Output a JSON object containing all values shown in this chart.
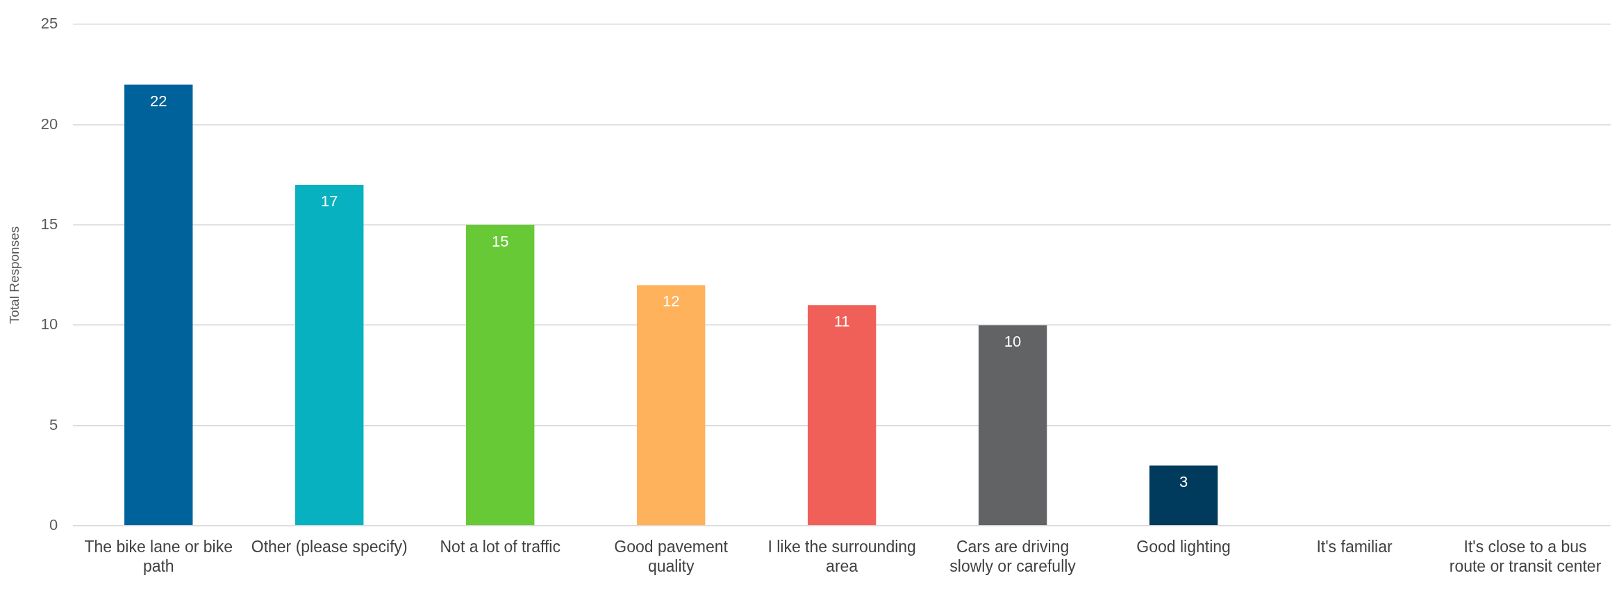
{
  "chart_data": {
    "type": "bar",
    "ylabel": "Total Responses",
    "categories": [
      "The bike lane or bike path",
      "Other (please specify)",
      "Not a lot of traffic",
      "Good pavement quality",
      "I like the surrounding area",
      "Cars are driving slowly or carefully",
      "Good lighting",
      "It's familiar",
      "It's close to a bus route or transit center"
    ],
    "values": [
      22,
      17,
      15,
      12,
      11,
      10,
      3,
      0,
      0
    ],
    "colors": [
      "#00629b",
      "#07b1bf",
      "#67c935",
      "#fdb25b",
      "#f06058",
      "#626365",
      "#003a5d",
      "#00629b",
      "#00629b"
    ],
    "value_labels": [
      "22",
      "17",
      "15",
      "12",
      "11",
      "10",
      "3",
      null,
      null
    ],
    "ylim": [
      0,
      25
    ],
    "yticks": [
      0,
      5,
      10,
      15,
      20,
      25
    ],
    "grid": "y",
    "legend": false
  }
}
